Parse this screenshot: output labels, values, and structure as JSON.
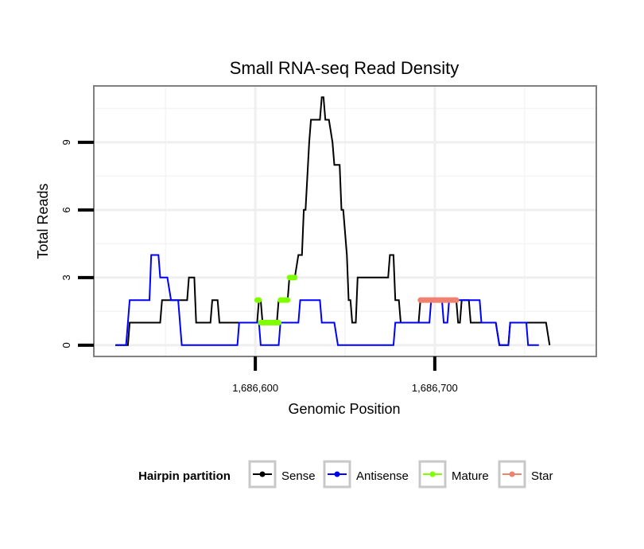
{
  "chart_data": {
    "type": "line",
    "title": "Small RNA-seq Read Density",
    "xlabel": "Genomic Position",
    "ylabel": "Total Reads",
    "xlim": [
      1686510,
      1686790
    ],
    "ylim": [
      -0.5,
      11.5
    ],
    "x_ticks": [
      1686600,
      1686700
    ],
    "x_tick_labels": [
      "1,686,600",
      "1,686,700"
    ],
    "y_ticks": [
      0,
      3,
      6,
      9
    ],
    "y_tick_labels": [
      "0",
      "3",
      "6",
      "9"
    ],
    "grid": true,
    "legend": {
      "title": "Hairpin partition",
      "position": "bottom",
      "entries": [
        {
          "label": "Sense",
          "color": "#000000"
        },
        {
          "label": "Antisense",
          "color": "#0000FF"
        },
        {
          "label": "Mature",
          "color": "#7FFF00"
        },
        {
          "label": "Star",
          "color": "#F08070"
        }
      ]
    },
    "series": [
      {
        "name": "Sense",
        "color": "#000000",
        "points": [
          [
            1686522,
            0
          ],
          [
            1686529,
            0
          ],
          [
            1686530,
            1
          ],
          [
            1686547,
            1
          ],
          [
            1686548,
            2
          ],
          [
            1686562,
            2
          ],
          [
            1686563,
            3
          ],
          [
            1686566,
            3
          ],
          [
            1686567,
            1
          ],
          [
            1686575,
            1
          ],
          [
            1686576,
            2
          ],
          [
            1686579,
            2
          ],
          [
            1686580,
            1
          ],
          [
            1686601,
            1
          ],
          [
            1686602,
            2
          ],
          [
            1686603,
            2
          ],
          [
            1686604,
            1
          ],
          [
            1686610,
            1
          ],
          [
            1686612,
            1
          ],
          [
            1686613,
            2
          ],
          [
            1686618,
            2
          ],
          [
            1686619,
            3
          ],
          [
            1686622,
            3
          ],
          [
            1686624,
            4
          ],
          [
            1686626,
            4
          ],
          [
            1686627,
            6
          ],
          [
            1686628,
            6
          ],
          [
            1686630,
            9
          ],
          [
            1686631,
            10
          ],
          [
            1686636,
            10
          ],
          [
            1686637,
            11
          ],
          [
            1686638,
            11
          ],
          [
            1686639,
            10
          ],
          [
            1686641,
            10
          ],
          [
            1686643,
            9
          ],
          [
            1686644,
            8
          ],
          [
            1686647,
            8
          ],
          [
            1686648,
            6
          ],
          [
            1686649,
            6
          ],
          [
            1686651,
            4
          ],
          [
            1686652,
            2
          ],
          [
            1686653,
            2
          ],
          [
            1686654,
            1
          ],
          [
            1686656,
            1
          ],
          [
            1686657,
            3
          ],
          [
            1686674,
            3
          ],
          [
            1686675,
            4
          ],
          [
            1686677,
            4
          ],
          [
            1686678,
            2
          ],
          [
            1686680,
            2
          ],
          [
            1686681,
            1
          ],
          [
            1686691,
            1
          ],
          [
            1686692,
            2
          ],
          [
            1686712,
            2
          ],
          [
            1686713,
            1
          ],
          [
            1686714,
            1
          ],
          [
            1686715,
            2
          ],
          [
            1686719,
            2
          ],
          [
            1686720,
            1
          ],
          [
            1686734,
            1
          ],
          [
            1686736,
            0
          ],
          [
            1686741,
            0
          ],
          [
            1686742,
            1
          ],
          [
            1686762,
            1
          ],
          [
            1686764,
            0
          ]
        ]
      },
      {
        "name": "Antisense",
        "color": "#0000FF",
        "points": [
          [
            1686522,
            0
          ],
          [
            1686528,
            0
          ],
          [
            1686530,
            2
          ],
          [
            1686541,
            2
          ],
          [
            1686542,
            4
          ],
          [
            1686546,
            4
          ],
          [
            1686547,
            3
          ],
          [
            1686551,
            3
          ],
          [
            1686553,
            2
          ],
          [
            1686557,
            2
          ],
          [
            1686559,
            0
          ],
          [
            1686590,
            0
          ],
          [
            1686591,
            1
          ],
          [
            1686602,
            1
          ],
          [
            1686603,
            0
          ],
          [
            1686613,
            0
          ],
          [
            1686614,
            1
          ],
          [
            1686624,
            1
          ],
          [
            1686625,
            2
          ],
          [
            1686636,
            2
          ],
          [
            1686637,
            1
          ],
          [
            1686644,
            1
          ],
          [
            1686646,
            0
          ],
          [
            1686677,
            0
          ],
          [
            1686678,
            1
          ],
          [
            1686697,
            1
          ],
          [
            1686698,
            2
          ],
          [
            1686704,
            2
          ],
          [
            1686705,
            1
          ],
          [
            1686707,
            1
          ],
          [
            1686708,
            2
          ],
          [
            1686725,
            2
          ],
          [
            1686726,
            1
          ],
          [
            1686734,
            1
          ],
          [
            1686736,
            0
          ],
          [
            1686741,
            0
          ],
          [
            1686742,
            1
          ],
          [
            1686751,
            1
          ],
          [
            1686752,
            0
          ],
          [
            1686758,
            0
          ]
        ]
      },
      {
        "name": "Mature",
        "color": "#7FFF00",
        "points": [
          [
            1686601,
            2
          ],
          [
            1686602,
            2
          ],
          [
            1686603,
            1
          ],
          [
            1686613,
            1
          ],
          [
            1686614,
            2
          ],
          [
            1686618,
            2
          ],
          [
            1686619,
            3
          ],
          [
            1686622,
            3
          ]
        ]
      },
      {
        "name": "Star",
        "color": "#F08070",
        "points": [
          [
            1686692,
            2
          ],
          [
            1686712,
            2
          ]
        ]
      }
    ]
  }
}
